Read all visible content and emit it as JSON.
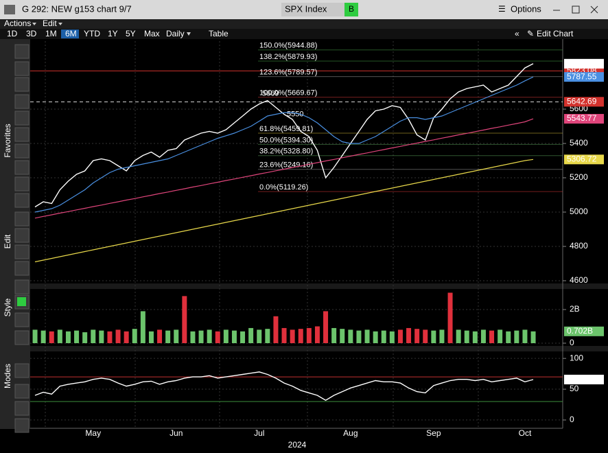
{
  "header": {
    "title": "G 292: NEW g153 chart 9/7",
    "security": "SPX Index",
    "badge": "B",
    "options": "Options"
  },
  "menu": [
    "Actions",
    "Edit"
  ],
  "toolbar": {
    "ranges": [
      "1D",
      "3D",
      "1M",
      "6M",
      "YTD",
      "1Y",
      "5Y",
      "Max"
    ],
    "frequency": "Daily",
    "table": "Table",
    "edit_chart": "Edit Chart"
  },
  "sidebar": [
    "Favorites",
    "Edit",
    "Style",
    "Modes"
  ],
  "chart_data": [
    {
      "type": "line",
      "x_label": "2024",
      "categories": [
        null,
        null,
        null,
        null,
        null,
        null,
        null,
        "May",
        null,
        null,
        null,
        null,
        null,
        null,
        null,
        null,
        null,
        "Jun",
        null,
        null,
        null,
        null,
        null,
        null,
        null,
        null,
        null,
        "Jul",
        null,
        null,
        null,
        null,
        null,
        null,
        null,
        null,
        null,
        null,
        "Aug",
        null,
        null,
        null,
        null,
        null,
        null,
        null,
        null,
        null,
        "Sep",
        null,
        null,
        null,
        null,
        null,
        null,
        null,
        null,
        null,
        null,
        "Oct",
        null
      ],
      "ylim": [
        4596,
        5996
      ],
      "yticks": [
        4600,
        4800,
        5000,
        5200,
        5400,
        5600
      ],
      "grid": true,
      "series": [
        {
          "color": "#ffffff",
          "values": [
            5030,
            5060,
            5050,
            5130,
            5180,
            5220,
            5240,
            5300,
            5310,
            5300,
            5270,
            5240,
            5300,
            5330,
            5350,
            5320,
            5360,
            5370,
            5420,
            5440,
            5460,
            5470,
            5460,
            5480,
            5520,
            5560,
            5600,
            5630,
            5650,
            5610,
            5570,
            5540,
            5470,
            5440,
            5360,
            5200,
            5260,
            5330,
            5400,
            5470,
            5540,
            5590,
            5600,
            5620,
            5610,
            5540,
            5450,
            5420,
            5550,
            5600,
            5660,
            5700,
            5720,
            5730,
            5740,
            5700,
            5720,
            5740,
            5790,
            5840,
            5864.67
          ]
        },
        {
          "color": "#4a90e2",
          "values": [
            5000,
            5010,
            5020,
            5040,
            5070,
            5100,
            5130,
            5170,
            5200,
            5230,
            5250,
            5260,
            5270,
            5280,
            5290,
            5300,
            5310,
            5330,
            5350,
            5370,
            5390,
            5410,
            5430,
            5445,
            5460,
            5480,
            5500,
            5530,
            5560,
            5570,
            5580,
            5580,
            5570,
            5550,
            5520,
            5480,
            5440,
            5410,
            5400,
            5400,
            5420,
            5440,
            5470,
            5500,
            5530,
            5550,
            5550,
            5540,
            5550,
            5560,
            5580,
            5600,
            5620,
            5640,
            5660,
            5680,
            5700,
            5720,
            5740,
            5765,
            5787.55
          ]
        },
        {
          "color": "#e0457b",
          "values": [
            4965,
            4975,
            4984,
            4994,
            5003,
            5013,
            5022,
            5032,
            5041,
            5051,
            5060,
            5070,
            5079,
            5089,
            5098,
            5108,
            5117,
            5127,
            5136,
            5146,
            5155,
            5165,
            5174,
            5184,
            5193,
            5203,
            5212,
            5222,
            5231,
            5241,
            5250,
            5260,
            5269,
            5279,
            5288,
            5298,
            5307,
            5317,
            5326,
            5336,
            5345,
            5355,
            5364,
            5374,
            5383,
            5393,
            5402,
            5412,
            5421,
            5431,
            5440,
            5450,
            5459,
            5469,
            5478,
            5488,
            5497,
            5507,
            5516,
            5526,
            5543.77
          ]
        },
        {
          "color": "#e8d84a",
          "values": [
            4710,
            4720,
            4730,
            4740,
            4750,
            4760,
            4770,
            4780,
            4790,
            4800,
            4810,
            4820,
            4830,
            4840,
            4850,
            4860,
            4870,
            4880,
            4890,
            4900,
            4910,
            4920,
            4930,
            4940,
            4950,
            4960,
            4970,
            4980,
            4990,
            5000,
            5010,
            5020,
            5030,
            5040,
            5050,
            5060,
            5070,
            5080,
            5090,
            5100,
            5110,
            5120,
            5130,
            5140,
            5150,
            5160,
            5170,
            5180,
            5190,
            5200,
            5210,
            5220,
            5230,
            5240,
            5250,
            5260,
            5270,
            5280,
            5290,
            5300,
            5306.72
          ]
        }
      ],
      "levels": [
        {
          "value": 5823.08,
          "color": "#d2322d"
        },
        {
          "value": 5642.69,
          "color": "#d2322d",
          "dashed": true
        }
      ],
      "fib_levels": [
        {
          "label": "150.0%(5944.88)",
          "value": 5944.88,
          "color": "#3d8f3d"
        },
        {
          "label": "138.2%(5879.93)",
          "value": 5879.93,
          "color": "#3d8f3d"
        },
        {
          "label": "123.6%(5789.57)",
          "value": 5789.57,
          "color": "#888888"
        },
        {
          "label": "100.0%(5669.67)",
          "value": 5669.67,
          "color": "#c23030"
        },
        {
          "label": "61.8%(5459.81)",
          "value": 5459.81,
          "color": "#b8a030"
        },
        {
          "label": "50.0%(5394.30)",
          "value": 5394.3,
          "color": "#4f8f4f"
        },
        {
          "label": "38.2%(5328.80)",
          "value": 5328.8,
          "color": "#4f8f4f"
        },
        {
          "label": "23.6%(5249.16)",
          "value": 5249.16,
          "color": "#888888"
        },
        {
          "label": "0.0%(5119.26)",
          "value": 5119.26,
          "color": "#c23030"
        }
      ],
      "peaks": [
        5669,
        5550
      ]
    },
    {
      "type": "bar",
      "ylim": [
        0,
        3.06
      ],
      "yticks": [
        0,
        {
          "value": 2,
          "label": "2B"
        }
      ],
      "grid": true,
      "series": [
        {
          "values": [
            0.8,
            0.75,
            0.7,
            0.8,
            0.7,
            0.75,
            0.65,
            0.8,
            0.75,
            0.7,
            0.8,
            0.7,
            0.85,
            1.9,
            0.7,
            0.8,
            0.75,
            0.8,
            2.8,
            0.7,
            0.75,
            0.8,
            0.7,
            0.8,
            0.75,
            0.7,
            0.9,
            0.8,
            0.85,
            1.6,
            0.9,
            0.8,
            0.85,
            0.9,
            1.0,
            1.9,
            0.9,
            0.85,
            0.8,
            0.75,
            0.8,
            0.7,
            0.75,
            0.7,
            0.8,
            0.9,
            0.85,
            0.8,
            0.75,
            0.8,
            3.0,
            0.8,
            0.75,
            0.7,
            0.8,
            0.75,
            0.8,
            0.7,
            0.75,
            0.8,
            0.702
          ],
          "colors": [
            "#6cc46c",
            "#6cc46c",
            "#e0303c",
            "#6cc46c",
            "#6cc46c",
            "#6cc46c",
            "#6cc46c",
            "#6cc46c",
            "#6cc46c",
            "#e0303c",
            "#e0303c",
            "#e0303c",
            "#6cc46c",
            "#6cc46c",
            "#6cc46c",
            "#e0303c",
            "#6cc46c",
            "#6cc46c",
            "#e0303c",
            "#6cc46c",
            "#6cc46c",
            "#6cc46c",
            "#e0303c",
            "#6cc46c",
            "#6cc46c",
            "#6cc46c",
            "#6cc46c",
            "#6cc46c",
            "#6cc46c",
            "#e0303c",
            "#e0303c",
            "#e0303c",
            "#e0303c",
            "#e0303c",
            "#e0303c",
            "#e0303c",
            "#6cc46c",
            "#6cc46c",
            "#6cc46c",
            "#6cc46c",
            "#6cc46c",
            "#6cc46c",
            "#6cc46c",
            "#6cc46c",
            "#e0303c",
            "#e0303c",
            "#e0303c",
            "#e0303c",
            "#6cc46c",
            "#6cc46c",
            "#e0303c",
            "#6cc46c",
            "#6cc46c",
            "#6cc46c",
            "#6cc46c",
            "#e0303c",
            "#6cc46c",
            "#6cc46c",
            "#6cc46c",
            "#6cc46c",
            "#6cc46c"
          ],
          "value_labels": [
            null,
            null,
            null,
            null,
            null,
            null,
            null,
            null,
            null,
            null,
            null,
            null,
            null,
            null,
            null,
            null,
            null,
            null,
            null,
            null,
            null,
            null,
            null,
            null,
            null,
            null,
            null,
            null,
            null,
            null,
            null,
            null,
            null,
            null,
            null,
            null,
            null,
            null,
            null,
            null,
            null,
            null,
            null,
            null,
            null,
            null,
            null,
            null,
            null,
            null,
            null,
            null,
            null,
            null,
            null,
            null,
            null,
            null,
            null,
            null,
            "0.702B"
          ]
        }
      ]
    },
    {
      "type": "line",
      "ylim": [
        -9,
        108
      ],
      "yticks": [
        0,
        50,
        100
      ],
      "grid": true,
      "series": [
        {
          "color": "#ffffff",
          "values": [
            40,
            45,
            42,
            55,
            58,
            60,
            62,
            66,
            68,
            66,
            60,
            55,
            58,
            62,
            63,
            58,
            62,
            64,
            68,
            70,
            70,
            72,
            68,
            70,
            72,
            74,
            76,
            78,
            74,
            68,
            60,
            55,
            48,
            44,
            40,
            32,
            40,
            46,
            52,
            56,
            60,
            64,
            62,
            62,
            60,
            52,
            46,
            44,
            56,
            60,
            64,
            66,
            66,
            64,
            66,
            62,
            64,
            66,
            68,
            62,
            65.6983
          ]
        }
      ],
      "levels": [
        {
          "value": 70,
          "color": "#c23030"
        },
        {
          "value": 30,
          "color": "#3d8f3d"
        }
      ]
    }
  ]
}
